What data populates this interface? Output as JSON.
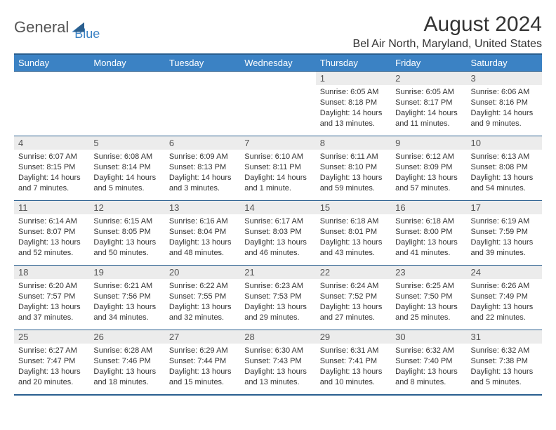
{
  "logo": {
    "part1": "General",
    "part2": "Blue"
  },
  "title": "August 2024",
  "location": "Bel Air North, Maryland, United States",
  "colors": {
    "header_bg": "#3b82c4",
    "border": "#2a5f8f",
    "daynum_bg": "#ececec",
    "text": "#333333"
  },
  "weekdays": [
    "Sunday",
    "Monday",
    "Tuesday",
    "Wednesday",
    "Thursday",
    "Friday",
    "Saturday"
  ],
  "weeks": [
    [
      null,
      null,
      null,
      null,
      {
        "n": "1",
        "sr": "Sunrise: 6:05 AM",
        "ss": "Sunset: 8:18 PM",
        "d1": "Daylight: 14 hours",
        "d2": "and 13 minutes."
      },
      {
        "n": "2",
        "sr": "Sunrise: 6:05 AM",
        "ss": "Sunset: 8:17 PM",
        "d1": "Daylight: 14 hours",
        "d2": "and 11 minutes."
      },
      {
        "n": "3",
        "sr": "Sunrise: 6:06 AM",
        "ss": "Sunset: 8:16 PM",
        "d1": "Daylight: 14 hours",
        "d2": "and 9 minutes."
      }
    ],
    [
      {
        "n": "4",
        "sr": "Sunrise: 6:07 AM",
        "ss": "Sunset: 8:15 PM",
        "d1": "Daylight: 14 hours",
        "d2": "and 7 minutes."
      },
      {
        "n": "5",
        "sr": "Sunrise: 6:08 AM",
        "ss": "Sunset: 8:14 PM",
        "d1": "Daylight: 14 hours",
        "d2": "and 5 minutes."
      },
      {
        "n": "6",
        "sr": "Sunrise: 6:09 AM",
        "ss": "Sunset: 8:13 PM",
        "d1": "Daylight: 14 hours",
        "d2": "and 3 minutes."
      },
      {
        "n": "7",
        "sr": "Sunrise: 6:10 AM",
        "ss": "Sunset: 8:11 PM",
        "d1": "Daylight: 14 hours",
        "d2": "and 1 minute."
      },
      {
        "n": "8",
        "sr": "Sunrise: 6:11 AM",
        "ss": "Sunset: 8:10 PM",
        "d1": "Daylight: 13 hours",
        "d2": "and 59 minutes."
      },
      {
        "n": "9",
        "sr": "Sunrise: 6:12 AM",
        "ss": "Sunset: 8:09 PM",
        "d1": "Daylight: 13 hours",
        "d2": "and 57 minutes."
      },
      {
        "n": "10",
        "sr": "Sunrise: 6:13 AM",
        "ss": "Sunset: 8:08 PM",
        "d1": "Daylight: 13 hours",
        "d2": "and 54 minutes."
      }
    ],
    [
      {
        "n": "11",
        "sr": "Sunrise: 6:14 AM",
        "ss": "Sunset: 8:07 PM",
        "d1": "Daylight: 13 hours",
        "d2": "and 52 minutes."
      },
      {
        "n": "12",
        "sr": "Sunrise: 6:15 AM",
        "ss": "Sunset: 8:05 PM",
        "d1": "Daylight: 13 hours",
        "d2": "and 50 minutes."
      },
      {
        "n": "13",
        "sr": "Sunrise: 6:16 AM",
        "ss": "Sunset: 8:04 PM",
        "d1": "Daylight: 13 hours",
        "d2": "and 48 minutes."
      },
      {
        "n": "14",
        "sr": "Sunrise: 6:17 AM",
        "ss": "Sunset: 8:03 PM",
        "d1": "Daylight: 13 hours",
        "d2": "and 46 minutes."
      },
      {
        "n": "15",
        "sr": "Sunrise: 6:18 AM",
        "ss": "Sunset: 8:01 PM",
        "d1": "Daylight: 13 hours",
        "d2": "and 43 minutes."
      },
      {
        "n": "16",
        "sr": "Sunrise: 6:18 AM",
        "ss": "Sunset: 8:00 PM",
        "d1": "Daylight: 13 hours",
        "d2": "and 41 minutes."
      },
      {
        "n": "17",
        "sr": "Sunrise: 6:19 AM",
        "ss": "Sunset: 7:59 PM",
        "d1": "Daylight: 13 hours",
        "d2": "and 39 minutes."
      }
    ],
    [
      {
        "n": "18",
        "sr": "Sunrise: 6:20 AM",
        "ss": "Sunset: 7:57 PM",
        "d1": "Daylight: 13 hours",
        "d2": "and 37 minutes."
      },
      {
        "n": "19",
        "sr": "Sunrise: 6:21 AM",
        "ss": "Sunset: 7:56 PM",
        "d1": "Daylight: 13 hours",
        "d2": "and 34 minutes."
      },
      {
        "n": "20",
        "sr": "Sunrise: 6:22 AM",
        "ss": "Sunset: 7:55 PM",
        "d1": "Daylight: 13 hours",
        "d2": "and 32 minutes."
      },
      {
        "n": "21",
        "sr": "Sunrise: 6:23 AM",
        "ss": "Sunset: 7:53 PM",
        "d1": "Daylight: 13 hours",
        "d2": "and 29 minutes."
      },
      {
        "n": "22",
        "sr": "Sunrise: 6:24 AM",
        "ss": "Sunset: 7:52 PM",
        "d1": "Daylight: 13 hours",
        "d2": "and 27 minutes."
      },
      {
        "n": "23",
        "sr": "Sunrise: 6:25 AM",
        "ss": "Sunset: 7:50 PM",
        "d1": "Daylight: 13 hours",
        "d2": "and 25 minutes."
      },
      {
        "n": "24",
        "sr": "Sunrise: 6:26 AM",
        "ss": "Sunset: 7:49 PM",
        "d1": "Daylight: 13 hours",
        "d2": "and 22 minutes."
      }
    ],
    [
      {
        "n": "25",
        "sr": "Sunrise: 6:27 AM",
        "ss": "Sunset: 7:47 PM",
        "d1": "Daylight: 13 hours",
        "d2": "and 20 minutes."
      },
      {
        "n": "26",
        "sr": "Sunrise: 6:28 AM",
        "ss": "Sunset: 7:46 PM",
        "d1": "Daylight: 13 hours",
        "d2": "and 18 minutes."
      },
      {
        "n": "27",
        "sr": "Sunrise: 6:29 AM",
        "ss": "Sunset: 7:44 PM",
        "d1": "Daylight: 13 hours",
        "d2": "and 15 minutes."
      },
      {
        "n": "28",
        "sr": "Sunrise: 6:30 AM",
        "ss": "Sunset: 7:43 PM",
        "d1": "Daylight: 13 hours",
        "d2": "and 13 minutes."
      },
      {
        "n": "29",
        "sr": "Sunrise: 6:31 AM",
        "ss": "Sunset: 7:41 PM",
        "d1": "Daylight: 13 hours",
        "d2": "and 10 minutes."
      },
      {
        "n": "30",
        "sr": "Sunrise: 6:32 AM",
        "ss": "Sunset: 7:40 PM",
        "d1": "Daylight: 13 hours",
        "d2": "and 8 minutes."
      },
      {
        "n": "31",
        "sr": "Sunrise: 6:32 AM",
        "ss": "Sunset: 7:38 PM",
        "d1": "Daylight: 13 hours",
        "d2": "and 5 minutes."
      }
    ]
  ]
}
